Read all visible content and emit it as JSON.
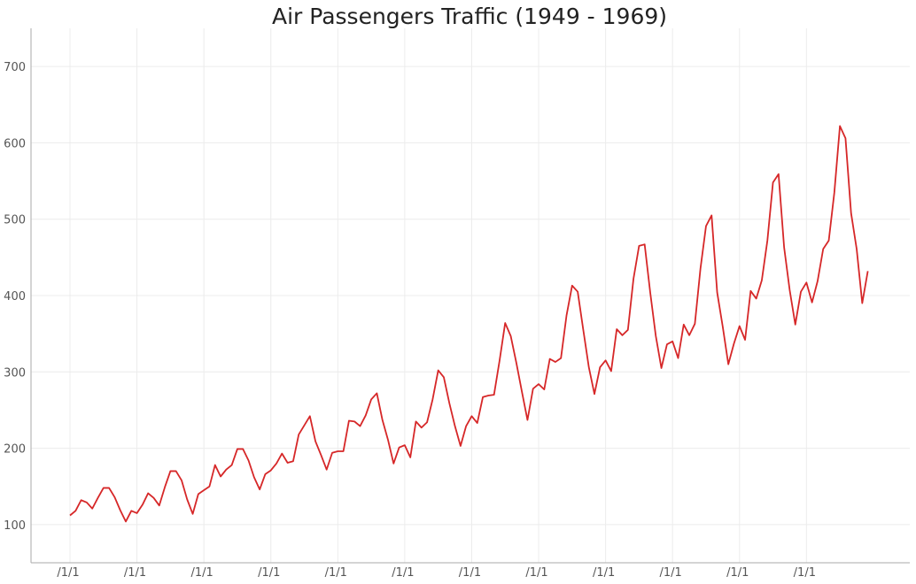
{
  "chart_data": {
    "type": "line",
    "title": "Air Passengers Traffic (1949 - 1969)",
    "xlabel": "",
    "ylabel": "",
    "ylim": [
      50,
      750
    ],
    "yticks": [
      100,
      200,
      300,
      400,
      500,
      600,
      700
    ],
    "xtick_labels": [
      "/1/1",
      "/1/1",
      "/1/1",
      "/1/1",
      "/1/1",
      "/1/1",
      "/1/1",
      "/1/1",
      "/1/1",
      "/1/1",
      "/1/1",
      "/1/1"
    ],
    "grid": true,
    "line_color": "#d62728",
    "series": [
      {
        "values": [
          112,
          118,
          132,
          129,
          121,
          135,
          148,
          148,
          136,
          119,
          104,
          118,
          115,
          126,
          141,
          135,
          125,
          149,
          170,
          170,
          158,
          133,
          114,
          140,
          145,
          150,
          178,
          163,
          172,
          178,
          199,
          199,
          184,
          162,
          146,
          166,
          171,
          180,
          193,
          181,
          183,
          218,
          230,
          242,
          209,
          191,
          172,
          194,
          196,
          196,
          236,
          235,
          229,
          243,
          264,
          272,
          237,
          211,
          180,
          201,
          204,
          188,
          235,
          227,
          234,
          264,
          302,
          293,
          259,
          229,
          203,
          229,
          242,
          233,
          267,
          269,
          270,
          315,
          364,
          347,
          312,
          274,
          237,
          278,
          284,
          277,
          317,
          313,
          318,
          374,
          413,
          405,
          355,
          306,
          271,
          306,
          315,
          301,
          356,
          348,
          355,
          422,
          465,
          467,
          404,
          347,
          305,
          336,
          340,
          318,
          362,
          348,
          363,
          435,
          491,
          505,
          404,
          359,
          310,
          337,
          360,
          342,
          406,
          396,
          420,
          472,
          548,
          559,
          463,
          407,
          362,
          405,
          417,
          391,
          419,
          461,
          472,
          535,
          622,
          606,
          508,
          461,
          390,
          432
        ]
      }
    ]
  }
}
